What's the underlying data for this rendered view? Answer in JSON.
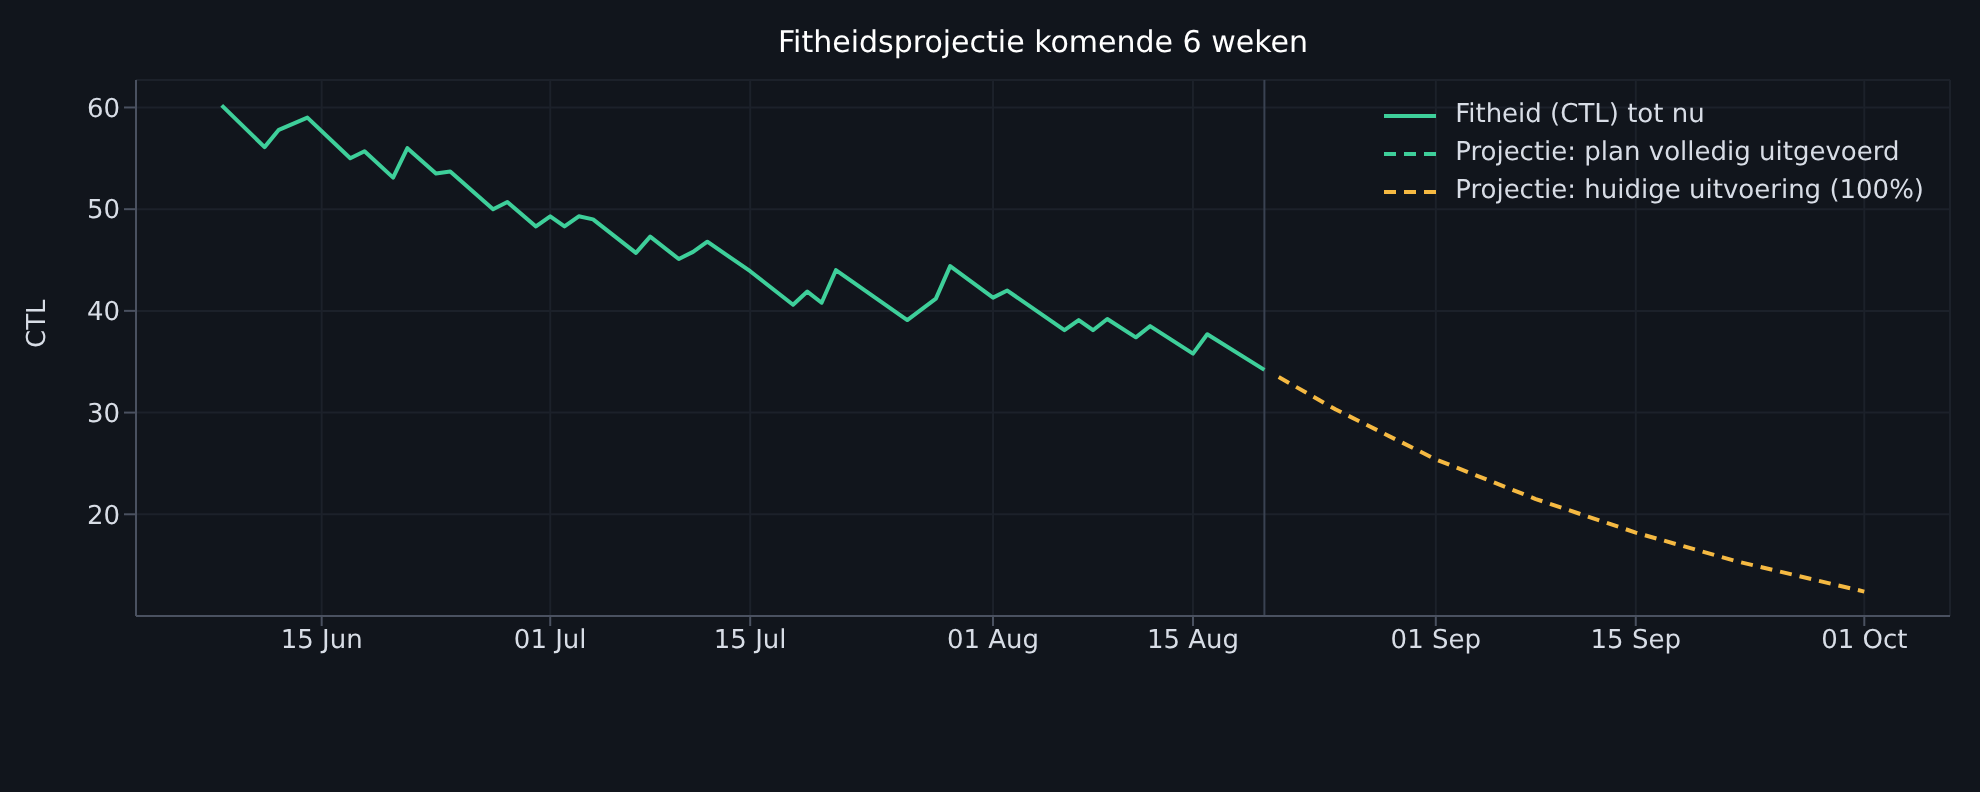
{
  "chart_data": {
    "type": "line",
    "title": "Fitheidsprojectie komende 6 weken",
    "ylabel": "CTL",
    "xlim": [
      "--06-02",
      "--10-07"
    ],
    "ylim": [
      10,
      62.7
    ],
    "xticks": [
      {
        "value": "--06-15",
        "label": "15 Jun"
      },
      {
        "value": "--07-01",
        "label": "01 Jul"
      },
      {
        "value": "--07-15",
        "label": "15 Jul"
      },
      {
        "value": "--08-01",
        "label": "01 Aug"
      },
      {
        "value": "--08-15",
        "label": "15 Aug"
      },
      {
        "value": "--09-01",
        "label": "01 Sep"
      },
      {
        "value": "--09-15",
        "label": "15 Sep"
      },
      {
        "value": "--10-01",
        "label": "01 Oct"
      }
    ],
    "yticks": [
      20,
      30,
      40,
      50,
      60
    ],
    "grid": true,
    "legend": "top right",
    "ref_lines": [
      {
        "axis": "x",
        "value": "--08-20",
        "color": "#3a4252"
      }
    ],
    "series": [
      {
        "name": "Fitheid (CTL) tot nu",
        "color": "#3ecf9a",
        "line_style": "solid",
        "x": [
          "--06-08",
          "--06-11",
          "--06-12",
          "--06-14",
          "--06-17",
          "--06-18",
          "--06-20",
          "--06-21",
          "--06-23",
          "--06-24",
          "--06-27",
          "--06-28",
          "--06-30",
          "--07-01",
          "--07-02",
          "--07-03",
          "--07-04",
          "--07-07",
          "--07-08",
          "--07-10",
          "--07-11",
          "--07-12",
          "--07-15",
          "--07-18",
          "--07-19",
          "--07-20",
          "--07-21",
          "--07-26",
          "--07-28",
          "--07-29",
          "--08-01",
          "--08-02",
          "--08-06",
          "--08-07",
          "--08-08",
          "--08-09",
          "--08-11",
          "--08-12",
          "--08-15",
          "--08-16",
          "--08-20"
        ],
        "values": [
          60.2,
          56.1,
          57.8,
          59.0,
          55.0,
          55.7,
          53.1,
          56.0,
          53.5,
          53.7,
          50.0,
          50.7,
          48.3,
          49.3,
          48.3,
          49.3,
          49.0,
          45.7,
          47.3,
          45.1,
          45.8,
          46.8,
          43.9,
          40.6,
          41.9,
          40.8,
          44.0,
          39.1,
          41.2,
          44.4,
          41.3,
          42.0,
          38.1,
          39.1,
          38.1,
          39.2,
          37.4,
          38.5,
          35.8,
          37.7,
          34.2
        ]
      },
      {
        "name": "Projectie: plan volledig uitgevoerd",
        "color": "#3ecf9a",
        "line_style": "dashed"
      },
      {
        "name": "Projectie: huidige uitvoering (100%)",
        "color": "#f5b942",
        "line_style": "dashed",
        "x": [
          "--08-21",
          "--08-25",
          "--09-01",
          "--09-08",
          "--09-15",
          "--09-22",
          "--10-01"
        ],
        "values": [
          33.5,
          30.3,
          25.4,
          21.5,
          18.2,
          15.4,
          12.4
        ]
      }
    ]
  }
}
